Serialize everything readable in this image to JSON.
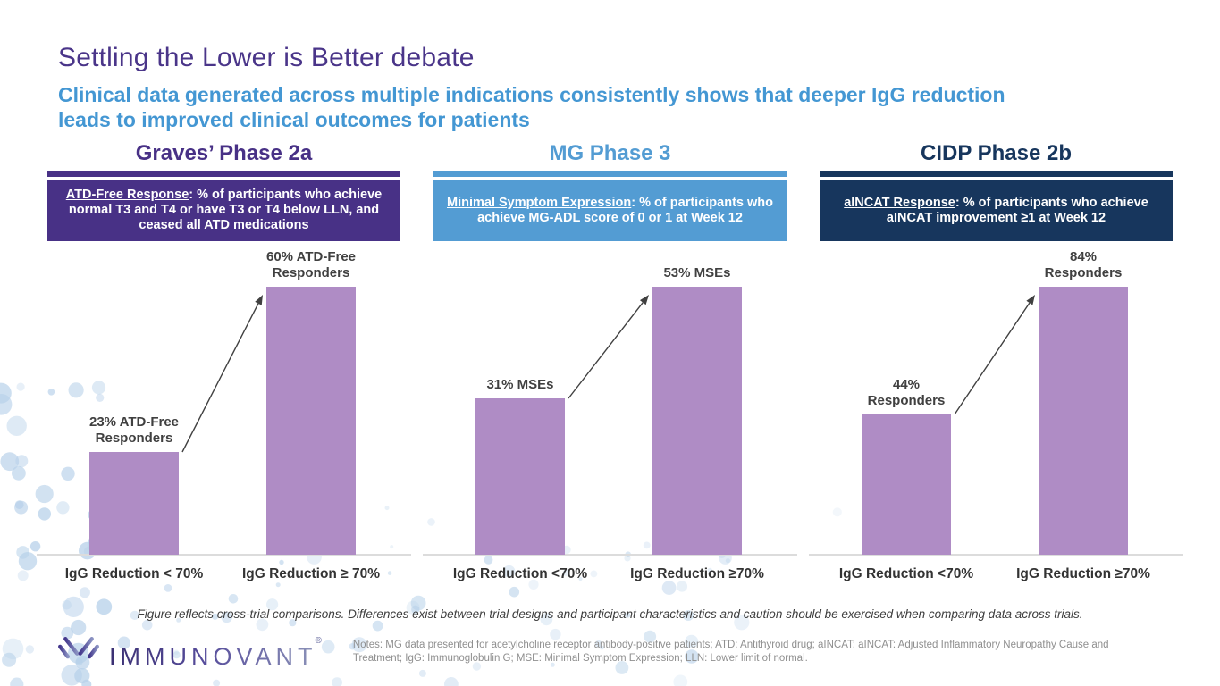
{
  "slide": {
    "title": "Settling the Lower is Better debate",
    "subtitle_lines": [
      "Clinical data generated across multiple indications consistently shows that deeper IgG reduction",
      "leads to improved clinical outcomes for patients"
    ],
    "figure_note": "Figure reflects cross-trial comparisons. Differences exist between trial designs and participant characteristics and caution should be exercised when comparing data across trials.",
    "footnote_lines": [
      "Notes: MG data presented for acetylcholine receptor antibody-positive patients; ATD: Antithyroid drug; aINCAT: aINCAT: Adjusted Inflammatory Neuropathy Cause and",
      "Treatment; IgG: Immunoglobulin G; MSE: Minimal Symptom Expression; LLN: Lower limit of normal."
    ],
    "logo_text": "IMMUNOVANT",
    "logo_reg": "®"
  },
  "colors": {
    "title_purple": "#4A3589",
    "subtitle_blue": "#4497D3",
    "graves_purple": "#483186",
    "mg_blue": "#539CD3",
    "cidp_navy": "#17365D",
    "bar_purple": "#AF8CC5",
    "baseline_gray": "#DCDCDC",
    "label_gray": "#404040",
    "notes_gray": "#8F8F8F"
  },
  "chart_data": [
    {
      "type": "bar",
      "title": "Graves’ Phase 2a",
      "metric_label": "ATD-Free Response",
      "metric_desc": ": % of participants who achieve normal T3 and T4 or have T3 or T4 below LLN, and ceased all ATD medications",
      "categories": [
        "IgG Reduction < 70%",
        "IgG Reduction ≥ 70%"
      ],
      "values": [
        23,
        60
      ],
      "unit": "%",
      "bar_labels": [
        "23% ATD-Free\nResponders",
        "60% ATD-Free\nResponders"
      ],
      "accent_color": "#483186",
      "bar_color": "#AF8CC5",
      "annotation": "arrow-from-low-to-high",
      "grid": false,
      "legend": false
    },
    {
      "type": "bar",
      "title": "MG Phase 3",
      "metric_label": "Minimal Symptom Expression",
      "metric_desc": ": % of participants who achieve MG-ADL score of 0 or 1 at Week 12",
      "categories": [
        "IgG Reduction <70%",
        "IgG Reduction ≥70%"
      ],
      "values": [
        31,
        53
      ],
      "unit": "%",
      "bar_labels": [
        "31% MSEs",
        "53% MSEs"
      ],
      "accent_color": "#539CD3",
      "bar_color": "#AF8CC5",
      "annotation": "arrow-from-low-to-high",
      "grid": false,
      "legend": false
    },
    {
      "type": "bar",
      "title": "CIDP Phase 2b",
      "metric_label": "aINCAT Response",
      "metric_desc": ": % of participants who achieve aINCAT improvement ≥1 at Week 12",
      "categories": [
        "IgG Reduction <70%",
        "IgG Reduction ≥70%"
      ],
      "values": [
        44,
        84
      ],
      "unit": "%",
      "bar_labels": [
        "44%\nResponders",
        "84%\nResponders"
      ],
      "accent_color": "#17365D",
      "bar_color": "#AF8CC5",
      "annotation": "arrow-from-low-to-high",
      "grid": false,
      "legend": false
    }
  ]
}
